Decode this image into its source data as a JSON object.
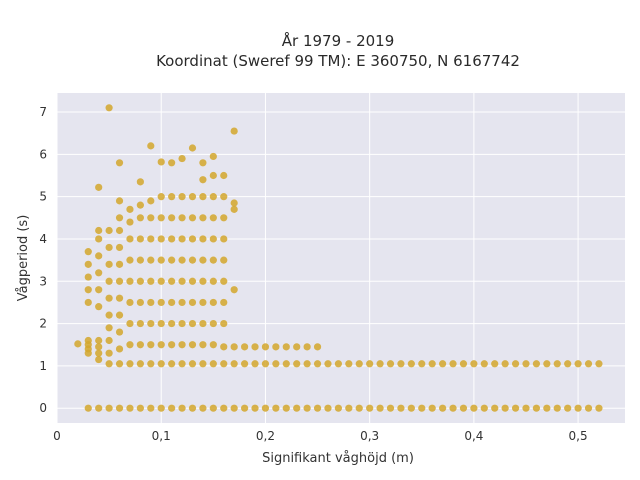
{
  "chart_data": {
    "type": "scatter",
    "title": "År 1979 - 2019",
    "subtitle": "Koordinat (Sweref 99 TM): E 360750, N 6167742",
    "xlabel": "Signifikant våghöjd (m)",
    "ylabel": "Vågperiod (s)",
    "xlim": [
      0,
      0.545
    ],
    "ylim": [
      -0.35,
      7.45
    ],
    "x_ticks": [
      0,
      0.1,
      0.2,
      0.3,
      0.4,
      0.5
    ],
    "x_tick_labels": [
      "0",
      "0,1",
      "0,2",
      "0,3",
      "0,4",
      "0,5"
    ],
    "y_ticks": [
      0,
      1,
      2,
      3,
      4,
      5,
      6,
      7
    ],
    "y_tick_labels": [
      "0",
      "1",
      "2",
      "3",
      "4",
      "5",
      "6",
      "7"
    ],
    "grid": true,
    "colors": {
      "marker": "#d4a72c",
      "plot_bg": "#e5e5ef",
      "grid": "#ffffff"
    },
    "series": [
      {
        "points": [
          [
            0.02,
            1.52
          ],
          [
            0.03,
            1.6
          ],
          [
            0.03,
            1.5
          ],
          [
            0.03,
            1.4
          ],
          [
            0.03,
            1.3
          ],
          [
            0.03,
            2.5
          ],
          [
            0.03,
            2.8
          ],
          [
            0.03,
            3.1
          ],
          [
            0.03,
            3.4
          ],
          [
            0.03,
            3.7
          ],
          [
            0.04,
            1.6
          ],
          [
            0.04,
            1.45
          ],
          [
            0.04,
            1.3
          ],
          [
            0.04,
            1.15
          ],
          [
            0.04,
            2.4
          ],
          [
            0.04,
            2.8
          ],
          [
            0.04,
            3.2
          ],
          [
            0.04,
            3.6
          ],
          [
            0.04,
            4.0
          ],
          [
            0.04,
            4.2
          ],
          [
            0.04,
            5.22
          ],
          [
            0.05,
            1.05
          ],
          [
            0.05,
            1.3
          ],
          [
            0.05,
            1.6
          ],
          [
            0.05,
            1.9
          ],
          [
            0.05,
            2.2
          ],
          [
            0.05,
            2.6
          ],
          [
            0.05,
            3.0
          ],
          [
            0.05,
            3.4
          ],
          [
            0.05,
            3.8
          ],
          [
            0.05,
            4.2
          ],
          [
            0.05,
            7.1
          ],
          [
            0.06,
            1.05
          ],
          [
            0.06,
            1.4
          ],
          [
            0.06,
            1.8
          ],
          [
            0.06,
            2.2
          ],
          [
            0.06,
            2.6
          ],
          [
            0.06,
            3.0
          ],
          [
            0.06,
            3.4
          ],
          [
            0.06,
            3.8
          ],
          [
            0.06,
            4.2
          ],
          [
            0.06,
            4.5
          ],
          [
            0.06,
            4.9
          ],
          [
            0.06,
            5.8
          ],
          [
            0.07,
            1.05
          ],
          [
            0.07,
            1.5
          ],
          [
            0.07,
            2.0
          ],
          [
            0.07,
            2.5
          ],
          [
            0.07,
            3.0
          ],
          [
            0.07,
            3.5
          ],
          [
            0.07,
            4.0
          ],
          [
            0.07,
            4.4
          ],
          [
            0.07,
            4.7
          ],
          [
            0.08,
            1.05
          ],
          [
            0.08,
            1.5
          ],
          [
            0.08,
            2.0
          ],
          [
            0.08,
            2.5
          ],
          [
            0.08,
            3.0
          ],
          [
            0.08,
            3.5
          ],
          [
            0.08,
            4.0
          ],
          [
            0.08,
            4.5
          ],
          [
            0.08,
            4.8
          ],
          [
            0.08,
            5.35
          ],
          [
            0.09,
            1.05
          ],
          [
            0.09,
            1.5
          ],
          [
            0.09,
            2.0
          ],
          [
            0.09,
            2.5
          ],
          [
            0.09,
            3.0
          ],
          [
            0.09,
            3.5
          ],
          [
            0.09,
            4.0
          ],
          [
            0.09,
            4.5
          ],
          [
            0.09,
            4.9
          ],
          [
            0.09,
            6.2
          ],
          [
            0.1,
            1.05
          ],
          [
            0.1,
            1.5
          ],
          [
            0.1,
            2.0
          ],
          [
            0.1,
            2.5
          ],
          [
            0.1,
            3.0
          ],
          [
            0.1,
            3.5
          ],
          [
            0.1,
            4.0
          ],
          [
            0.1,
            4.5
          ],
          [
            0.1,
            5.0
          ],
          [
            0.1,
            5.82
          ],
          [
            0.11,
            1.05
          ],
          [
            0.11,
            1.5
          ],
          [
            0.11,
            2.0
          ],
          [
            0.11,
            2.5
          ],
          [
            0.11,
            3.0
          ],
          [
            0.11,
            3.5
          ],
          [
            0.11,
            4.0
          ],
          [
            0.11,
            4.5
          ],
          [
            0.11,
            5.0
          ],
          [
            0.11,
            5.8
          ],
          [
            0.12,
            1.05
          ],
          [
            0.12,
            1.5
          ],
          [
            0.12,
            2.0
          ],
          [
            0.12,
            2.5
          ],
          [
            0.12,
            3.0
          ],
          [
            0.12,
            3.5
          ],
          [
            0.12,
            4.0
          ],
          [
            0.12,
            4.5
          ],
          [
            0.12,
            5.0
          ],
          [
            0.12,
            5.9
          ],
          [
            0.13,
            1.05
          ],
          [
            0.13,
            1.5
          ],
          [
            0.13,
            2.0
          ],
          [
            0.13,
            2.5
          ],
          [
            0.13,
            3.0
          ],
          [
            0.13,
            3.5
          ],
          [
            0.13,
            4.0
          ],
          [
            0.13,
            4.5
          ],
          [
            0.13,
            5.0
          ],
          [
            0.13,
            6.15
          ],
          [
            0.14,
            1.05
          ],
          [
            0.14,
            1.5
          ],
          [
            0.14,
            2.0
          ],
          [
            0.14,
            2.5
          ],
          [
            0.14,
            3.0
          ],
          [
            0.14,
            3.5
          ],
          [
            0.14,
            4.0
          ],
          [
            0.14,
            4.5
          ],
          [
            0.14,
            5.0
          ],
          [
            0.14,
            5.4
          ],
          [
            0.14,
            5.8
          ],
          [
            0.15,
            1.05
          ],
          [
            0.15,
            1.5
          ],
          [
            0.15,
            2.0
          ],
          [
            0.15,
            2.5
          ],
          [
            0.15,
            3.0
          ],
          [
            0.15,
            3.5
          ],
          [
            0.15,
            4.0
          ],
          [
            0.15,
            4.5
          ],
          [
            0.15,
            5.0
          ],
          [
            0.15,
            5.5
          ],
          [
            0.15,
            5.95
          ],
          [
            0.16,
            1.05
          ],
          [
            0.16,
            1.45
          ],
          [
            0.16,
            2.0
          ],
          [
            0.16,
            2.5
          ],
          [
            0.16,
            3.0
          ],
          [
            0.16,
            3.5
          ],
          [
            0.16,
            4.0
          ],
          [
            0.16,
            4.5
          ],
          [
            0.16,
            5.0
          ],
          [
            0.16,
            5.5
          ],
          [
            0.17,
            1.05
          ],
          [
            0.17,
            1.45
          ],
          [
            0.17,
            2.8
          ],
          [
            0.17,
            4.7
          ],
          [
            0.17,
            4.85
          ],
          [
            0.17,
            6.55
          ],
          [
            0.18,
            1.05
          ],
          [
            0.18,
            1.45
          ],
          [
            0.19,
            1.05
          ],
          [
            0.19,
            1.45
          ],
          [
            0.2,
            1.05
          ],
          [
            0.2,
            1.45
          ],
          [
            0.21,
            1.05
          ],
          [
            0.21,
            1.45
          ],
          [
            0.22,
            1.05
          ],
          [
            0.22,
            1.45
          ],
          [
            0.23,
            1.05
          ],
          [
            0.23,
            1.45
          ],
          [
            0.24,
            1.05
          ],
          [
            0.24,
            1.45
          ],
          [
            0.25,
            1.05
          ],
          [
            0.25,
            1.45
          ],
          [
            0.26,
            1.05
          ],
          [
            0.27,
            1.05
          ],
          [
            0.28,
            1.05
          ],
          [
            0.29,
            1.05
          ],
          [
            0.3,
            1.05
          ],
          [
            0.31,
            1.05
          ],
          [
            0.32,
            1.05
          ],
          [
            0.33,
            1.05
          ],
          [
            0.34,
            1.05
          ],
          [
            0.35,
            1.05
          ],
          [
            0.36,
            1.05
          ],
          [
            0.37,
            1.05
          ],
          [
            0.38,
            1.05
          ],
          [
            0.39,
            1.05
          ],
          [
            0.4,
            1.05
          ],
          [
            0.41,
            1.05
          ],
          [
            0.42,
            1.05
          ],
          [
            0.43,
            1.05
          ],
          [
            0.44,
            1.05
          ],
          [
            0.45,
            1.05
          ],
          [
            0.46,
            1.05
          ],
          [
            0.47,
            1.05
          ],
          [
            0.48,
            1.05
          ],
          [
            0.49,
            1.05
          ],
          [
            0.5,
            1.05
          ],
          [
            0.51,
            1.05
          ],
          [
            0.52,
            1.05
          ],
          [
            0.03,
            0
          ],
          [
            0.04,
            0
          ],
          [
            0.05,
            0
          ],
          [
            0.06,
            0
          ],
          [
            0.07,
            0
          ],
          [
            0.08,
            0
          ],
          [
            0.09,
            0
          ],
          [
            0.1,
            0
          ],
          [
            0.11,
            0
          ],
          [
            0.12,
            0
          ],
          [
            0.13,
            0
          ],
          [
            0.14,
            0
          ],
          [
            0.15,
            0
          ],
          [
            0.16,
            0
          ],
          [
            0.17,
            0
          ],
          [
            0.18,
            0
          ],
          [
            0.19,
            0
          ],
          [
            0.2,
            0
          ],
          [
            0.21,
            0
          ],
          [
            0.22,
            0
          ],
          [
            0.23,
            0
          ],
          [
            0.24,
            0
          ],
          [
            0.25,
            0
          ],
          [
            0.26,
            0
          ],
          [
            0.27,
            0
          ],
          [
            0.28,
            0
          ],
          [
            0.29,
            0
          ],
          [
            0.3,
            0
          ],
          [
            0.31,
            0
          ],
          [
            0.32,
            0
          ],
          [
            0.33,
            0
          ],
          [
            0.34,
            0
          ],
          [
            0.35,
            0
          ],
          [
            0.36,
            0
          ],
          [
            0.37,
            0
          ],
          [
            0.38,
            0
          ],
          [
            0.39,
            0
          ],
          [
            0.4,
            0
          ],
          [
            0.41,
            0
          ],
          [
            0.42,
            0
          ],
          [
            0.43,
            0
          ],
          [
            0.44,
            0
          ],
          [
            0.45,
            0
          ],
          [
            0.46,
            0
          ],
          [
            0.47,
            0
          ],
          [
            0.48,
            0
          ],
          [
            0.49,
            0
          ],
          [
            0.5,
            0
          ],
          [
            0.51,
            0
          ],
          [
            0.52,
            0
          ]
        ]
      }
    ]
  }
}
